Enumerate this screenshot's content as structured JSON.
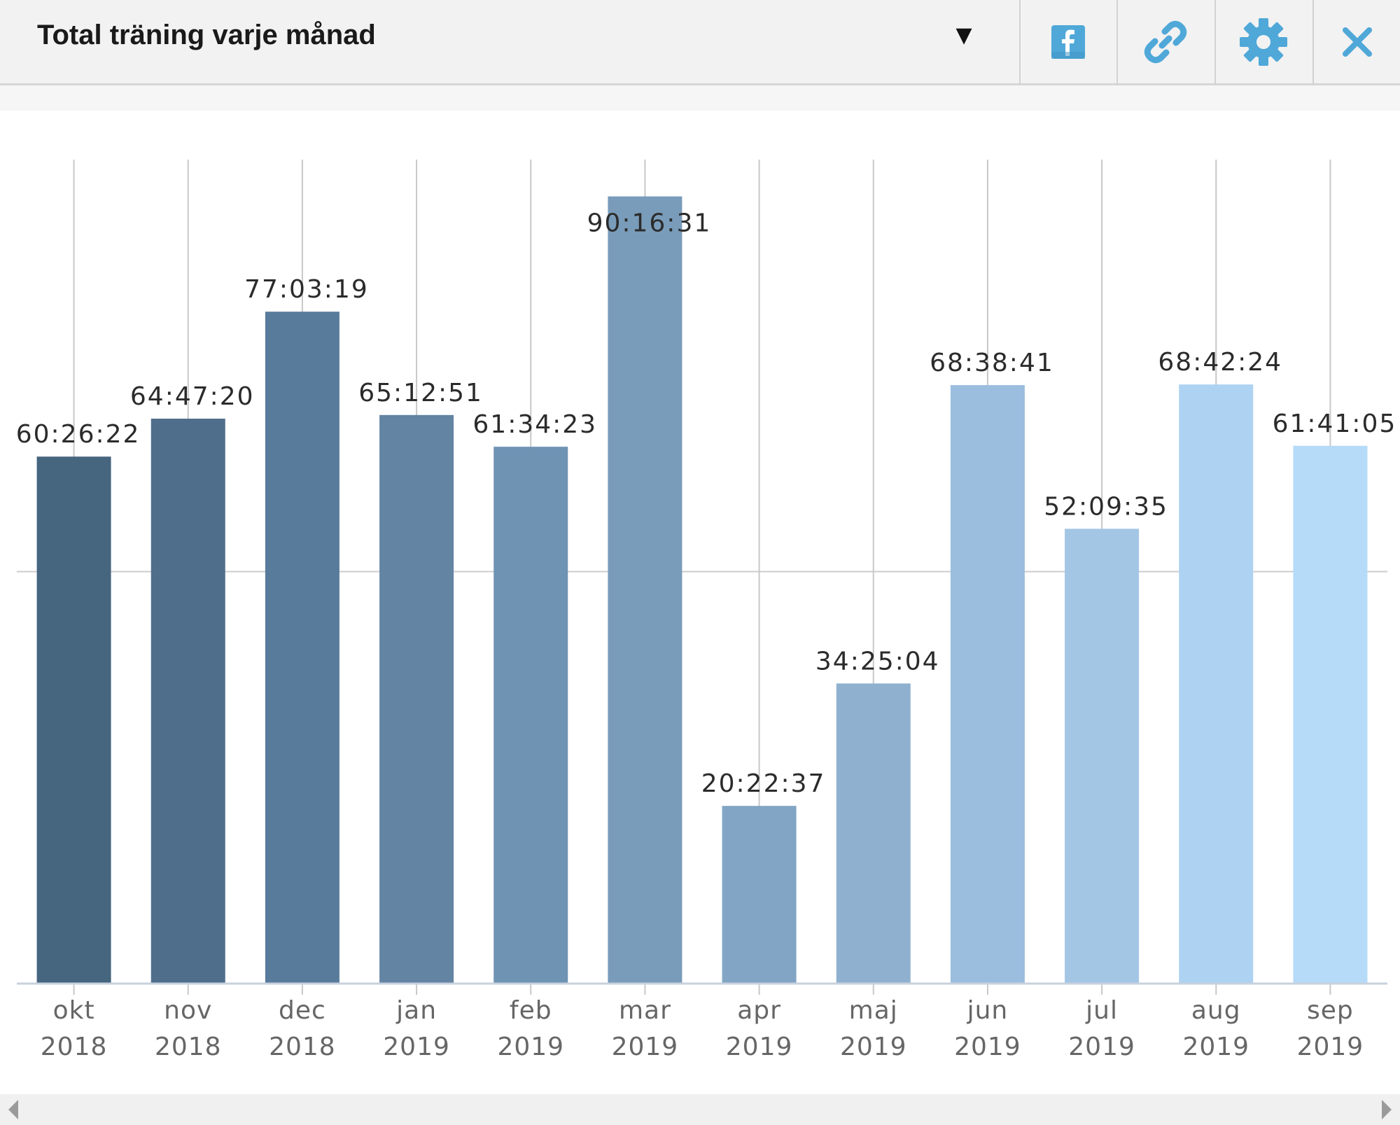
{
  "header": {
    "title": "Total träning varje månad",
    "dropdown_glyph": "▼",
    "tools": [
      {
        "name": "facebook-icon",
        "color": "#4fa8d8"
      },
      {
        "name": "link-icon",
        "color": "#4fa8d8"
      },
      {
        "name": "gear-icon",
        "color": "#4fa8d8"
      },
      {
        "name": "close-icon",
        "color": "#4fa8d8"
      }
    ]
  },
  "chart_data": {
    "type": "bar",
    "title": "",
    "xlabel": "",
    "ylabel": "",
    "grid": true,
    "categories": [
      [
        "okt",
        "2018"
      ],
      [
        "nov",
        "2018"
      ],
      [
        "dec",
        "2018"
      ],
      [
        "jan",
        "2019"
      ],
      [
        "feb",
        "2019"
      ],
      [
        "mar",
        "2019"
      ],
      [
        "apr",
        "2019"
      ],
      [
        "maj",
        "2019"
      ],
      [
        "jun",
        "2019"
      ],
      [
        "jul",
        "2019"
      ],
      [
        "aug",
        "2019"
      ],
      [
        "sep",
        "2019"
      ]
    ],
    "labels": [
      "60:26:22",
      "64:47:20",
      "77:03:19",
      "65:12:51",
      "61:34:23",
      "90:16:31",
      "20:22:37",
      "34:25:04",
      "68:38:41",
      "52:09:35",
      "68:42:24",
      "61:41:05"
    ],
    "values_hours": [
      60.44,
      64.79,
      77.06,
      65.21,
      61.57,
      90.28,
      20.38,
      34.42,
      68.64,
      52.16,
      68.71,
      61.68
    ],
    "ylim": [
      0,
      94.5
    ],
    "colors": [
      "#46657f",
      "#4f6e8c",
      "#587b9c",
      "#6384a3",
      "#6e93b3",
      "#799cba",
      "#82a5c5",
      "#8fb1cf",
      "#9bbedf",
      "#a3c6e5",
      "#add2f2",
      "#b6dbf8"
    ]
  }
}
